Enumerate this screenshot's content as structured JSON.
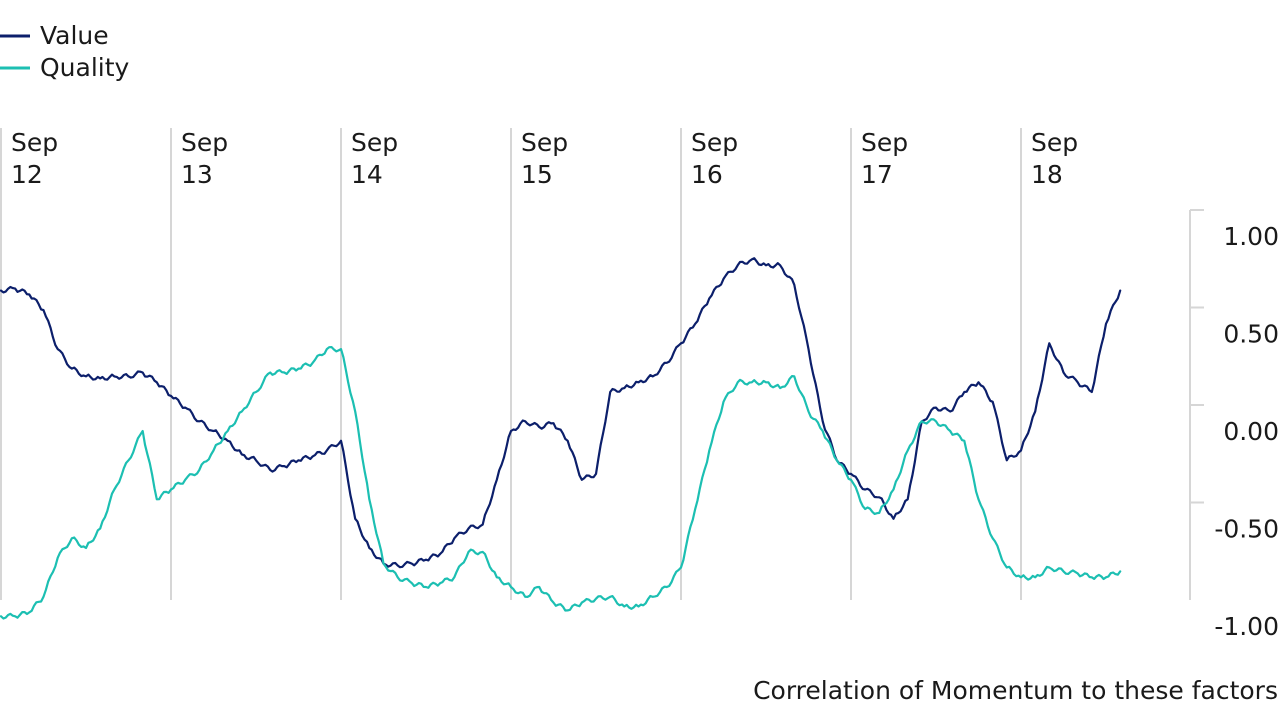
{
  "chart_data": {
    "type": "line",
    "caption": "Correlation of Momentum to these factors",
    "x_ticks": [
      {
        "month": "Sep",
        "year": "12",
        "date": "2012-09"
      },
      {
        "month": "Sep",
        "year": "13",
        "date": "2013-09"
      },
      {
        "month": "Sep",
        "year": "14",
        "date": "2014-09"
      },
      {
        "month": "Sep",
        "year": "15",
        "date": "2015-09"
      },
      {
        "month": "Sep",
        "year": "16",
        "date": "2016-09"
      },
      {
        "month": "Sep",
        "year": "17",
        "date": "2017-09"
      },
      {
        "month": "Sep",
        "year": "18",
        "date": "2018-09"
      }
    ],
    "y_ticks": [
      "1.00",
      "0.50",
      "0.00",
      "-0.50",
      "-1.00"
    ],
    "ylim": [
      -1,
      1
    ],
    "legend_position": "top-left",
    "grid": "vertical",
    "x": [
      "2012-09",
      "2012-10",
      "2012-11",
      "2012-12",
      "2013-01",
      "2013-02",
      "2013-03",
      "2013-04",
      "2013-05",
      "2013-06",
      "2013-07",
      "2013-08",
      "2013-09",
      "2013-10",
      "2013-11",
      "2013-12",
      "2014-01",
      "2014-02",
      "2014-03",
      "2014-04",
      "2014-05",
      "2014-06",
      "2014-07",
      "2014-08",
      "2014-09",
      "2014-10",
      "2014-11",
      "2014-12",
      "2015-01",
      "2015-02",
      "2015-03",
      "2015-04",
      "2015-05",
      "2015-06",
      "2015-07",
      "2015-08",
      "2015-09",
      "2015-10",
      "2015-11",
      "2015-12",
      "2016-01",
      "2016-02",
      "2016-03",
      "2016-04",
      "2016-05",
      "2016-06",
      "2016-07",
      "2016-08",
      "2016-09",
      "2016-10",
      "2016-11",
      "2016-12",
      "2017-01",
      "2017-02",
      "2017-03",
      "2017-04",
      "2017-05",
      "2017-06",
      "2017-07",
      "2017-08",
      "2017-09",
      "2017-10",
      "2017-11",
      "2017-12",
      "2018-01",
      "2018-02",
      "2018-03",
      "2018-04",
      "2018-05",
      "2018-06",
      "2018-07",
      "2018-08",
      "2018-09",
      "2018-10",
      "2018-11",
      "2018-12",
      "2019-01",
      "2019-02",
      "2019-03",
      "2019-04"
    ],
    "series": [
      {
        "name": "Value",
        "color": "#0c1f6b",
        "values": [
          0.72,
          0.73,
          0.7,
          0.62,
          0.42,
          0.32,
          0.28,
          0.27,
          0.28,
          0.28,
          0.3,
          0.25,
          0.18,
          0.12,
          0.05,
          0.0,
          -0.05,
          -0.12,
          -0.15,
          -0.2,
          -0.18,
          -0.15,
          -0.13,
          -0.1,
          -0.05,
          -0.45,
          -0.6,
          -0.68,
          -0.69,
          -0.68,
          -0.66,
          -0.63,
          -0.55,
          -0.5,
          -0.48,
          -0.25,
          0.0,
          0.05,
          0.02,
          0.04,
          -0.05,
          -0.25,
          -0.22,
          0.2,
          0.22,
          0.25,
          0.28,
          0.35,
          0.45,
          0.55,
          0.68,
          0.78,
          0.85,
          0.88,
          0.85,
          0.85,
          0.75,
          0.42,
          0.05,
          -0.15,
          -0.22,
          -0.3,
          -0.34,
          -0.45,
          -0.35,
          0.05,
          0.12,
          0.1,
          0.2,
          0.25,
          0.15,
          -0.15,
          -0.1,
          0.1,
          0.45,
          0.3,
          0.25,
          0.2,
          0.55,
          0.72
        ]
      },
      {
        "name": "Quality",
        "color": "#1cbfb2",
        "values": [
          -0.95,
          -0.95,
          -0.93,
          -0.85,
          -0.65,
          -0.55,
          -0.6,
          -0.5,
          -0.3,
          -0.15,
          0.0,
          -0.35,
          -0.3,
          -0.25,
          -0.2,
          -0.1,
          0.0,
          0.1,
          0.2,
          0.3,
          0.3,
          0.32,
          0.35,
          0.42,
          0.42,
          0.1,
          -0.35,
          -0.68,
          -0.75,
          -0.78,
          -0.8,
          -0.78,
          -0.75,
          -0.62,
          -0.62,
          -0.75,
          -0.8,
          -0.85,
          -0.8,
          -0.88,
          -0.92,
          -0.88,
          -0.86,
          -0.85,
          -0.9,
          -0.9,
          -0.85,
          -0.8,
          -0.7,
          -0.4,
          -0.1,
          0.15,
          0.25,
          0.25,
          0.25,
          0.22,
          0.28,
          0.1,
          0.0,
          -0.15,
          -0.25,
          -0.4,
          -0.42,
          -0.3,
          -0.1,
          0.05,
          0.05,
          0.0,
          -0.05,
          -0.35,
          -0.55,
          -0.7,
          -0.75,
          -0.75,
          -0.7,
          -0.72,
          -0.73,
          -0.75,
          -0.75,
          -0.72
        ]
      }
    ]
  }
}
